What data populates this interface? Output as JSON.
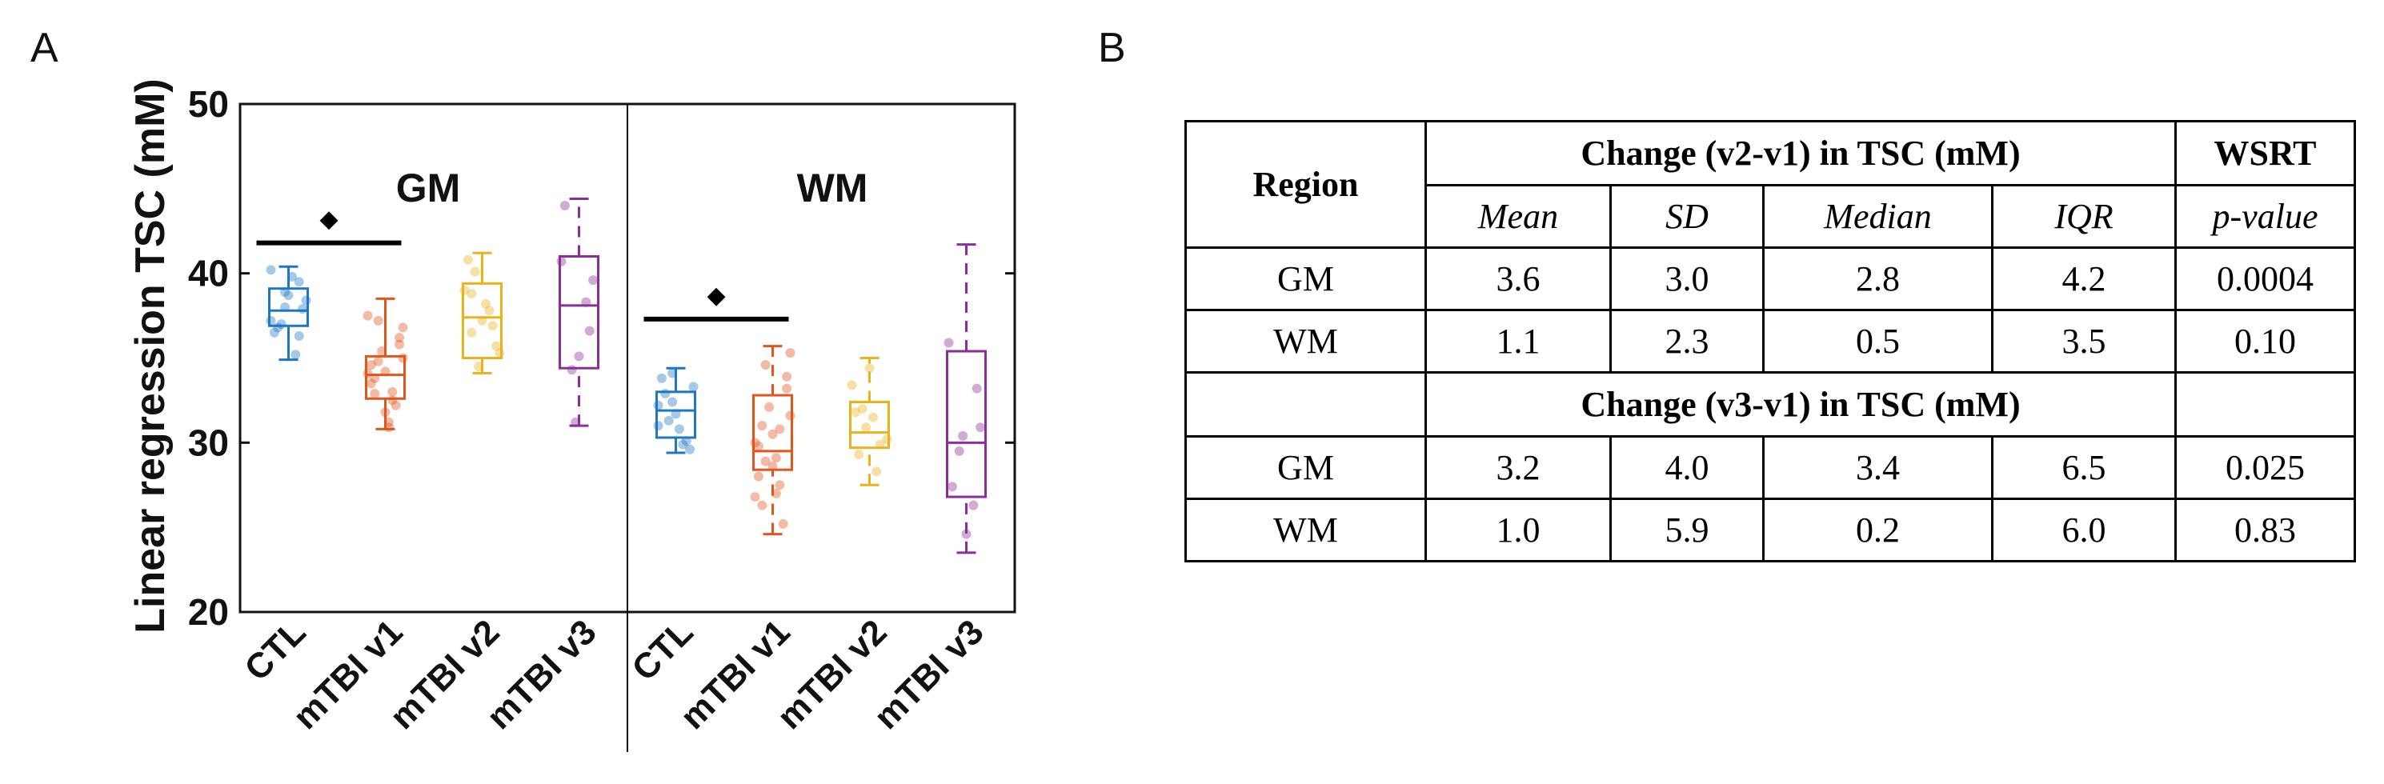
{
  "panel_a_label": "A",
  "panel_b_label": "B",
  "chart_data": {
    "type": "box",
    "title": "",
    "ylabel": "Linear regression TSC (mM)",
    "ylim": [
      20,
      50
    ],
    "yticks": [
      20,
      30,
      40,
      50
    ],
    "categories": [
      "CTL",
      "mTBI v1",
      "mTBI v2",
      "mTBI v3"
    ],
    "colors": {
      "CTL": "#1f77c4",
      "mTBI v1": "#e0561d",
      "mTBI v2": "#eab21d",
      "mTBI v3": "#8a2f96"
    },
    "panels": [
      {
        "name": "GM",
        "significance_marker": "◆",
        "significance_pair": [
          "CTL",
          "mTBI v1"
        ],
        "significance_bar_y": 41.8,
        "groups": [
          {
            "name": "CTL",
            "min": 34.9,
            "q1": 36.9,
            "median": 37.8,
            "q3": 39.1,
            "max": 40.4,
            "whisker_style": "solid",
            "points": [
              37.2,
              38.0,
              39.5,
              36.5,
              38.7,
              37.9,
              36.8,
              39.8,
              38.4,
              37.0,
              35.2,
              40.2,
              38.9,
              36.3
            ]
          },
          {
            "name": "mTBI v1",
            "min": 30.8,
            "q1": 32.6,
            "median": 34.0,
            "q3": 35.1,
            "max": 38.5,
            "whisker_style": "solid",
            "points": [
              33.5,
              34.2,
              35.8,
              32.9,
              31.2,
              36.8,
              34.8,
              33.0,
              37.5,
              35.4,
              32.2,
              34.6,
              31.8,
              36.2,
              33.8,
              30.9,
              35.0,
              37.2,
              32.5,
              34.1
            ]
          },
          {
            "name": "mTBI v2",
            "min": 34.1,
            "q1": 35.0,
            "median": 37.4,
            "q3": 39.4,
            "max": 41.2,
            "whisker_style": "solid",
            "points": [
              36.5,
              38.2,
              35.3,
              40.1,
              37.8,
              39.0,
              34.5,
              36.9,
              40.8,
              37.2,
              35.7,
              38.8
            ]
          },
          {
            "name": "mTBI v3",
            "min": 31.0,
            "q1": 34.4,
            "median": 38.1,
            "q3": 41.0,
            "max": 44.4,
            "whisker_style": "dashed",
            "points": [
              34.3,
              38.3,
              40.7,
              31.2,
              36.6,
              44.0,
              35.1,
              39.6
            ]
          }
        ]
      },
      {
        "name": "WM",
        "significance_marker": "◆",
        "significance_pair": [
          "CTL",
          "mTBI v1"
        ],
        "significance_bar_y": 37.3,
        "groups": [
          {
            "name": "CTL",
            "min": 29.4,
            "q1": 30.3,
            "median": 31.9,
            "q3": 33.0,
            "max": 34.4,
            "whisker_style": "solid",
            "points": [
              31.0,
              32.4,
              30.1,
              33.8,
              31.7,
              29.6,
              32.9,
              30.8,
              33.3,
              31.3,
              29.9,
              32.2,
              34.1
            ]
          },
          {
            "name": "mTBI v1",
            "min": 24.6,
            "q1": 28.4,
            "median": 29.5,
            "q3": 32.8,
            "max": 35.7,
            "whisker_style": "dashed",
            "points": [
              28.0,
              30.5,
              33.2,
              26.3,
              29.1,
              31.6,
              34.6,
              27.5,
              30.0,
              32.1,
              25.2,
              29.8,
              28.6,
              33.9,
              31.0,
              27.0,
              35.3,
              28.9,
              30.8,
              26.8
            ]
          },
          {
            "name": "mTBI v2",
            "min": 27.5,
            "q1": 29.7,
            "median": 30.6,
            "q3": 32.4,
            "max": 35.0,
            "whisker_style": "dashed",
            "points": [
              29.3,
              31.5,
              30.2,
              32.0,
              28.3,
              33.4,
              30.9,
              29.9,
              31.8,
              34.4
            ]
          },
          {
            "name": "mTBI v3",
            "min": 23.5,
            "q1": 26.8,
            "median": 30.0,
            "q3": 35.4,
            "max": 41.7,
            "whisker_style": "dashed",
            "points": [
              29.5,
              26.3,
              35.9,
              30.4,
              33.2,
              27.4,
              24.6,
              30.9
            ]
          }
        ]
      }
    ]
  },
  "table": {
    "region_header": "Region",
    "change_v2_header": "Change (v2-v1) in TSC (mM)",
    "change_v3_header": "Change (v3-v1) in TSC (mM)",
    "wsrt_header": "WSRT",
    "subheaders": [
      "Mean",
      "SD",
      "Median",
      "IQR",
      "p-value"
    ],
    "v2_rows": [
      {
        "region": "GM",
        "mean": "3.6",
        "sd": "3.0",
        "median": "2.8",
        "iqr": "4.2",
        "p": "0.0004"
      },
      {
        "region": "WM",
        "mean": "1.1",
        "sd": "2.3",
        "median": "0.5",
        "iqr": "3.5",
        "p": "0.10"
      }
    ],
    "v3_rows": [
      {
        "region": "GM",
        "mean": "3.2",
        "sd": "4.0",
        "median": "3.4",
        "iqr": "6.5",
        "p": "0.025"
      },
      {
        "region": "WM",
        "mean": "1.0",
        "sd": "5.9",
        "median": "0.2",
        "iqr": "6.0",
        "p": "0.83"
      }
    ]
  }
}
